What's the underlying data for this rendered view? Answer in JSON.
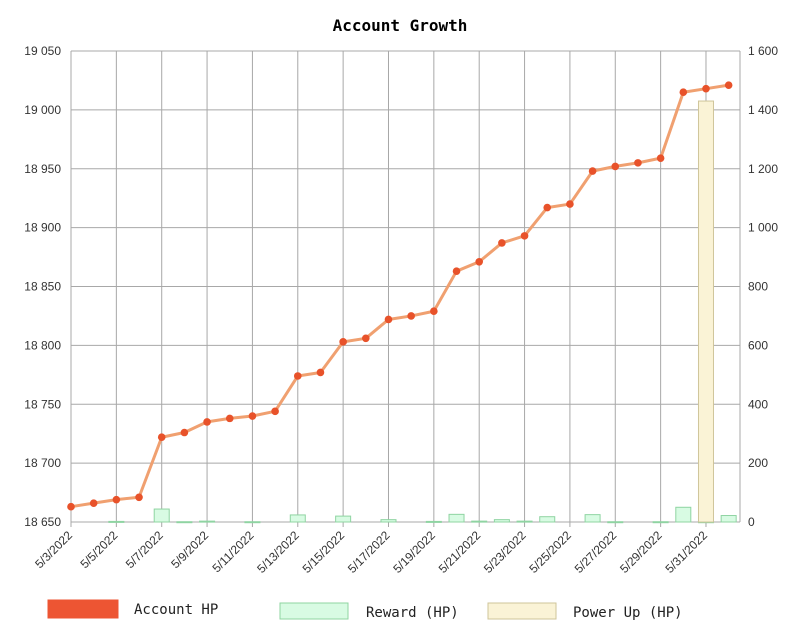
{
  "chart_data": {
    "type": "line",
    "title": "Account Growth",
    "categories": [
      "5/3/2022",
      "5/4/2022",
      "5/5/2022",
      "5/6/2022",
      "5/7/2022",
      "5/8/2022",
      "5/9/2022",
      "5/10/2022",
      "5/11/2022",
      "5/12/2022",
      "5/13/2022",
      "5/14/2022",
      "5/15/2022",
      "5/16/2022",
      "5/17/2022",
      "5/18/2022",
      "5/19/2022",
      "5/20/2022",
      "5/21/2022",
      "5/22/2022",
      "5/23/2022",
      "5/24/2022",
      "5/25/2022",
      "5/26/2022",
      "5/27/2022",
      "5/28/2022",
      "5/29/2022",
      "5/30/2022",
      "5/31/2022",
      "6/1/2022"
    ],
    "tick_labels": [
      "5/3/2022",
      "5/5/2022",
      "5/7/2022",
      "5/9/2022",
      "5/11/2022",
      "5/13/2022",
      "5/15/2022",
      "5/17/2022",
      "5/19/2022",
      "5/21/2022",
      "5/23/2022",
      "5/25/2022",
      "5/27/2022",
      "5/29/2022",
      "5/31/2022"
    ],
    "y_left": {
      "range": [
        18650,
        19050
      ],
      "ticks": [
        18650,
        18700,
        18750,
        18800,
        18850,
        18900,
        18950,
        19000,
        19050
      ],
      "tick_labels": [
        "18 650",
        "18 700",
        "18 750",
        "18 800",
        "18 850",
        "18 900",
        "18 950",
        "19 000",
        "19 050"
      ]
    },
    "y_right": {
      "range": [
        0,
        1600
      ],
      "ticks": [
        0,
        200,
        400,
        600,
        800,
        1000,
        1200,
        1400,
        1600
      ],
      "tick_labels": [
        "0",
        "200",
        "400",
        "600",
        "800",
        "1 000",
        "1 200",
        "1 400",
        "1 600"
      ]
    },
    "grid": true,
    "legend_position": "bottom",
    "series": [
      {
        "name": "Account HP",
        "type": "line",
        "axis": "left",
        "color": "#f0a070",
        "marker_color": "#e8522a",
        "values": [
          18663,
          18666,
          18669,
          18671,
          18722,
          18726,
          18735,
          18738,
          18740,
          18744,
          18774,
          18777,
          18803,
          18806,
          18822,
          18825,
          18829,
          18863,
          18871,
          18887,
          18893,
          18917,
          18920,
          18948,
          18952,
          18955,
          18959,
          19015,
          19018,
          19021
        ]
      },
      {
        "name": "Reward (HP)",
        "type": "bar",
        "axis": "right",
        "color": "#d8fbe3",
        "border": "#8fd4a2",
        "values": [
          0,
          0,
          2,
          0,
          44,
          1,
          3,
          0,
          1,
          0,
          24,
          0,
          20,
          0,
          8,
          0,
          2,
          26,
          3,
          8,
          3,
          18,
          0,
          25,
          1,
          0,
          1,
          50,
          1,
          22
        ]
      },
      {
        "name": "Power Up (HP)",
        "type": "bar",
        "axis": "right",
        "color": "#faf3d6",
        "border": "#cfc59a",
        "values": [
          0,
          0,
          0,
          0,
          0,
          0,
          0,
          0,
          0,
          0,
          0,
          0,
          0,
          0,
          0,
          0,
          0,
          0,
          0,
          0,
          0,
          0,
          0,
          0,
          0,
          0,
          0,
          0,
          1430,
          0
        ]
      }
    ]
  },
  "legend": {
    "items": [
      {
        "label": "Account HP",
        "color": "#ed5533",
        "border": "#ed5533"
      },
      {
        "label": "Reward (HP)",
        "color": "#d8fbe3",
        "border": "#8fd4a2"
      },
      {
        "label": "Power Up (HP)",
        "color": "#faf3d6",
        "border": "#cfc59a"
      }
    ]
  }
}
